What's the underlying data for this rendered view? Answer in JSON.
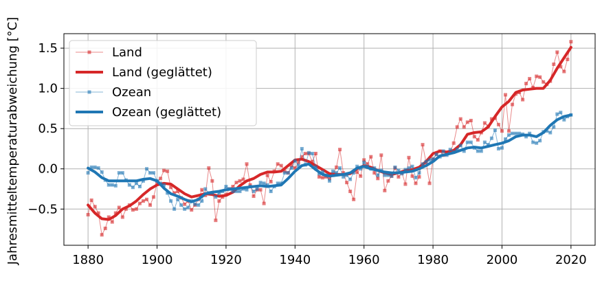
{
  "chart_data": {
    "type": "line",
    "ylabel": "Jahresmitteltemperaturabweichung [°C]",
    "xlim": [
      1873,
      2027
    ],
    "ylim": [
      -0.95,
      1.68
    ],
    "xticks": [
      1880,
      1900,
      1920,
      1940,
      1960,
      1980,
      2000,
      2020
    ],
    "yticks": [
      -0.5,
      0.0,
      0.5,
      1.0,
      1.5
    ],
    "ytick_labels": [
      "−0.5",
      "0.0",
      "0.5",
      "1.0",
      "1.5"
    ],
    "grid": true,
    "legend_position": "upper-left",
    "x_raw": [
      1880,
      1881,
      1882,
      1883,
      1884,
      1885,
      1886,
      1887,
      1888,
      1889,
      1890,
      1891,
      1892,
      1893,
      1894,
      1895,
      1896,
      1897,
      1898,
      1899,
      1900,
      1901,
      1902,
      1903,
      1904,
      1905,
      1906,
      1907,
      1908,
      1909,
      1910,
      1911,
      1912,
      1913,
      1914,
      1915,
      1916,
      1917,
      1918,
      1919,
      1920,
      1921,
      1922,
      1923,
      1924,
      1925,
      1926,
      1927,
      1928,
      1929,
      1930,
      1931,
      1932,
      1933,
      1934,
      1935,
      1936,
      1937,
      1938,
      1939,
      1940,
      1941,
      1942,
      1943,
      1944,
      1945,
      1946,
      1947,
      1948,
      1949,
      1950,
      1951,
      1952,
      1953,
      1954,
      1955,
      1956,
      1957,
      1958,
      1959,
      1960,
      1961,
      1962,
      1963,
      1964,
      1965,
      1966,
      1967,
      1968,
      1969,
      1970,
      1971,
      1972,
      1973,
      1974,
      1975,
      1976,
      1977,
      1978,
      1979,
      1980,
      1981,
      1982,
      1983,
      1984,
      1985,
      1986,
      1987,
      1988,
      1989,
      1990,
      1991,
      1992,
      1993,
      1994,
      1995,
      1996,
      1997,
      1998,
      1999,
      2000,
      2001,
      2002,
      2003,
      2004,
      2005,
      2006,
      2007,
      2008,
      2009,
      2010,
      2011,
      2012,
      2013,
      2014,
      2015,
      2016,
      2017,
      2018,
      2019,
      2020
    ],
    "x_smooth": [
      1880,
      1882,
      1884,
      1886,
      1888,
      1890,
      1892,
      1894,
      1896,
      1898,
      1900,
      1902,
      1904,
      1906,
      1908,
      1910,
      1912,
      1914,
      1916,
      1918,
      1920,
      1922,
      1924,
      1926,
      1928,
      1930,
      1932,
      1934,
      1936,
      1938,
      1940,
      1942,
      1944,
      1946,
      1948,
      1950,
      1952,
      1954,
      1956,
      1958,
      1960,
      1962,
      1964,
      1966,
      1968,
      1970,
      1972,
      1974,
      1976,
      1978,
      1980,
      1982,
      1984,
      1986,
      1988,
      1990,
      1992,
      1994,
      1996,
      1998,
      2000,
      2002,
      2004,
      2006,
      2008,
      2010,
      2012,
      2014,
      2016,
      2018,
      2020
    ],
    "series": [
      {
        "name": "Land",
        "color": "#d62728",
        "style": "raw",
        "values": [
          -0.57,
          -0.39,
          -0.47,
          -0.55,
          -0.82,
          -0.74,
          -0.6,
          -0.66,
          -0.55,
          -0.48,
          -0.6,
          -0.5,
          -0.45,
          -0.51,
          -0.5,
          -0.43,
          -0.4,
          -0.38,
          -0.45,
          -0.35,
          -0.18,
          -0.12,
          -0.02,
          -0.03,
          -0.23,
          -0.3,
          -0.28,
          -0.36,
          -0.44,
          -0.4,
          -0.51,
          -0.45,
          -0.38,
          -0.26,
          -0.33,
          0.01,
          -0.15,
          -0.64,
          -0.4,
          -0.35,
          -0.32,
          -0.25,
          -0.22,
          -0.17,
          -0.15,
          -0.13,
          0.06,
          -0.2,
          -0.34,
          -0.26,
          -0.26,
          -0.43,
          -0.08,
          -0.16,
          -0.03,
          0.06,
          0.04,
          -0.03,
          -0.05,
          0.04,
          0.01,
          0.08,
          0.15,
          0.19,
          0.19,
          0.09,
          0.19,
          -0.1,
          -0.11,
          -0.1,
          -0.12,
          -0.08,
          0.02,
          0.24,
          -0.05,
          -0.17,
          -0.28,
          -0.38,
          -0.04,
          -0.09,
          0.11,
          0.06,
          0.15,
          -0.05,
          -0.12,
          0.17,
          -0.27,
          -0.15,
          -0.09,
          0.01,
          -0.1,
          -0.05,
          -0.19,
          0.14,
          -0.09,
          -0.18,
          -0.1,
          0.3,
          0.08,
          -0.18,
          0.12,
          0.18,
          0.22,
          0.17,
          0.2,
          0.21,
          0.32,
          0.52,
          0.62,
          0.52,
          0.58,
          0.6,
          0.4,
          0.36,
          0.45,
          0.57,
          0.53,
          0.62,
          0.63,
          0.55,
          0.47,
          0.92,
          0.47,
          0.8,
          0.93,
          0.95,
          0.86,
          1.06,
          1.12,
          1.01,
          1.15,
          1.14,
          1.08,
          1.05,
          1.09,
          1.3,
          1.45,
          1.27,
          1.21,
          1.36,
          1.58
        ]
      },
      {
        "name": "Land (geglättet)",
        "color": "#d62728",
        "style": "smooth",
        "values": [
          -0.45,
          -0.55,
          -0.62,
          -0.63,
          -0.58,
          -0.5,
          -0.46,
          -0.4,
          -0.32,
          -0.25,
          -0.2,
          -0.18,
          -0.19,
          -0.25,
          -0.31,
          -0.35,
          -0.33,
          -0.31,
          -0.32,
          -0.34,
          -0.33,
          -0.29,
          -0.21,
          -0.15,
          -0.12,
          -0.07,
          -0.04,
          -0.04,
          -0.03,
          0.04,
          0.11,
          0.12,
          0.09,
          0.04,
          -0.01,
          -0.06,
          -0.07,
          -0.07,
          -0.06,
          0.0,
          0.04,
          0.02,
          -0.02,
          -0.05,
          -0.07,
          -0.05,
          -0.02,
          -0.01,
          0.02,
          0.09,
          0.19,
          0.22,
          0.21,
          0.23,
          0.3,
          0.43,
          0.45,
          0.46,
          0.52,
          0.65,
          0.77,
          0.84,
          0.95,
          0.98,
          0.99,
          1.0,
          1.0,
          1.1,
          1.25,
          1.38,
          1.51
        ]
      },
      {
        "name": "Ozean",
        "color": "#1f77b4",
        "style": "raw",
        "values": [
          -0.05,
          0.02,
          0.02,
          0.01,
          -0.04,
          -0.14,
          -0.2,
          -0.2,
          -0.21,
          -0.05,
          -0.05,
          -0.14,
          -0.2,
          -0.23,
          -0.18,
          -0.22,
          -0.15,
          0.0,
          -0.05,
          -0.05,
          -0.15,
          -0.18,
          -0.2,
          -0.3,
          -0.4,
          -0.5,
          -0.38,
          -0.45,
          -0.5,
          -0.48,
          -0.4,
          -0.44,
          -0.45,
          -0.4,
          -0.25,
          -0.3,
          -0.3,
          -0.35,
          -0.3,
          -0.28,
          -0.22,
          -0.25,
          -0.28,
          -0.28,
          -0.28,
          -0.25,
          -0.26,
          -0.22,
          -0.28,
          -0.25,
          -0.17,
          -0.18,
          -0.2,
          -0.28,
          -0.22,
          -0.18,
          -0.18,
          -0.05,
          -0.05,
          0.01,
          0.1,
          0.04,
          0.25,
          0.05,
          0.2,
          0.19,
          0.02,
          -0.06,
          -0.04,
          -0.08,
          -0.15,
          -0.03,
          -0.05,
          0.01,
          -0.1,
          -0.08,
          -0.13,
          -0.05,
          0.03,
          0.0,
          0.08,
          0.03,
          0.0,
          0.01,
          -0.08,
          -0.02,
          -0.08,
          -0.08,
          -0.09,
          0.02,
          -0.02,
          -0.06,
          -0.01,
          0.01,
          0.03,
          -0.11,
          -0.05,
          0.06,
          0.09,
          0.11,
          0.12,
          0.18,
          0.15,
          0.22,
          0.17,
          0.24,
          0.21,
          0.24,
          0.29,
          0.22,
          0.33,
          0.33,
          0.26,
          0.22,
          0.22,
          0.33,
          0.3,
          0.38,
          0.48,
          0.25,
          0.26,
          0.37,
          0.42,
          0.44,
          0.44,
          0.44,
          0.43,
          0.4,
          0.44,
          0.33,
          0.32,
          0.35,
          0.46,
          0.47,
          0.45,
          0.52,
          0.68,
          0.7,
          0.61,
          0.65,
          0.67
        ]
      },
      {
        "name": "Ozean (geglättet)",
        "color": "#1f77b4",
        "style": "smooth",
        "values": [
          0.01,
          -0.04,
          -0.11,
          -0.15,
          -0.15,
          -0.15,
          -0.15,
          -0.15,
          -0.13,
          -0.12,
          -0.15,
          -0.24,
          -0.31,
          -0.34,
          -0.38,
          -0.41,
          -0.38,
          -0.31,
          -0.29,
          -0.28,
          -0.26,
          -0.25,
          -0.24,
          -0.23,
          -0.22,
          -0.21,
          -0.22,
          -0.21,
          -0.2,
          -0.12,
          -0.03,
          0.04,
          0.06,
          -0.01,
          -0.07,
          -0.09,
          -0.08,
          -0.07,
          -0.05,
          0.01,
          0.03,
          0.0,
          -0.02,
          -0.04,
          -0.05,
          -0.05,
          -0.04,
          -0.03,
          0.0,
          0.04,
          0.09,
          0.16,
          0.18,
          0.2,
          0.23,
          0.26,
          0.27,
          0.26,
          0.28,
          0.3,
          0.32,
          0.35,
          0.4,
          0.42,
          0.42,
          0.4,
          0.45,
          0.54,
          0.61,
          0.65,
          0.67
        ]
      }
    ]
  }
}
